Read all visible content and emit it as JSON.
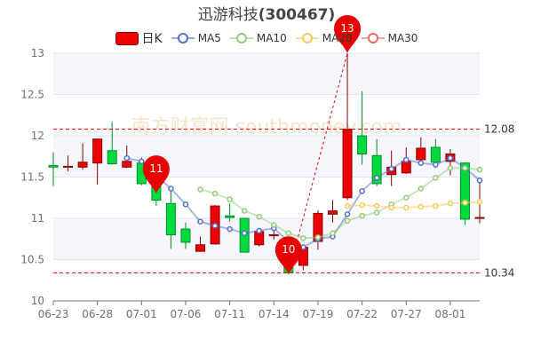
{
  "title": {
    "name": "迅游科技",
    "code": "(300467)"
  },
  "legend": [
    {
      "label": "日K",
      "color": "#ee0000"
    },
    {
      "label": "MA5",
      "color": "#5470c6"
    },
    {
      "label": "MA10",
      "color": "#91cc75"
    },
    {
      "label": "MA20",
      "color": "#fac858"
    },
    {
      "label": "MA30",
      "color": "#ee6666"
    }
  ],
  "chart_data": {
    "type": "candlestick",
    "ylim": [
      10,
      13
    ],
    "yticks": [
      10,
      10.5,
      11,
      11.5,
      12,
      12.5,
      13
    ],
    "xtick_labels": [
      "06-23",
      "06-28",
      "07-01",
      "07-06",
      "07-11",
      "07-14",
      "07-19",
      "07-22",
      "07-27",
      "08-01"
    ],
    "up_color": "#ee0000",
    "down_color": "#00da3c",
    "dates": [
      "06-23",
      "06-24",
      "06-27",
      "06-28",
      "06-29",
      "06-30",
      "07-01",
      "07-04",
      "07-05",
      "07-06",
      "07-07",
      "07-08",
      "07-11",
      "07-12",
      "07-13",
      "07-14",
      "07-15",
      "07-18",
      "07-19",
      "07-20",
      "07-21",
      "07-22",
      "07-25",
      "07-26",
      "07-27",
      "07-28",
      "07-29",
      "08-01",
      "08-02",
      "08-03"
    ],
    "ohlc": [
      [
        11.64,
        11.62,
        11.8,
        11.39
      ],
      [
        11.62,
        11.63,
        11.76,
        11.57
      ],
      [
        11.62,
        11.68,
        11.91,
        11.59
      ],
      [
        11.67,
        11.96,
        11.96,
        11.41
      ],
      [
        11.82,
        11.66,
        12.17,
        11.65
      ],
      [
        11.62,
        11.69,
        11.88,
        11.61
      ],
      [
        11.67,
        11.42,
        11.74,
        11.4
      ],
      [
        11.44,
        11.22,
        11.5,
        11.15
      ],
      [
        11.18,
        10.8,
        11.33,
        10.63
      ],
      [
        10.87,
        10.71,
        10.95,
        10.63
      ],
      [
        10.6,
        10.68,
        10.78,
        10.6
      ],
      [
        10.69,
        11.15,
        11.16,
        10.68
      ],
      [
        11.03,
        11.01,
        11.18,
        10.96
      ],
      [
        11.0,
        10.59,
        11.0,
        10.59
      ],
      [
        10.68,
        10.84,
        10.88,
        10.66
      ],
      [
        10.79,
        10.8,
        10.87,
        10.74
      ],
      [
        10.55,
        10.34,
        10.6,
        10.32
      ],
      [
        10.43,
        10.65,
        10.67,
        10.37
      ],
      [
        10.72,
        11.06,
        11.1,
        10.62
      ],
      [
        11.05,
        11.09,
        11.22,
        10.95
      ],
      [
        11.25,
        12.08,
        13.0,
        11.22
      ],
      [
        12.0,
        11.78,
        12.54,
        11.65
      ],
      [
        11.76,
        11.42,
        11.96,
        11.39
      ],
      [
        11.53,
        11.62,
        11.82,
        11.39
      ],
      [
        11.55,
        11.69,
        11.86,
        11.54
      ],
      [
        11.71,
        11.85,
        11.98,
        11.7
      ],
      [
        11.86,
        11.68,
        11.96,
        11.61
      ],
      [
        11.69,
        11.78,
        11.84,
        11.52
      ],
      [
        11.67,
        10.99,
        11.68,
        10.92
      ],
      [
        11.0,
        11.01,
        11.44,
        10.94
      ]
    ],
    "ma": {
      "MA5": [
        null,
        null,
        null,
        null,
        null,
        11.73,
        11.69,
        11.52,
        11.36,
        11.17,
        10.96,
        10.91,
        10.87,
        10.82,
        10.85,
        10.88,
        10.72,
        10.65,
        10.75,
        10.78,
        11.05,
        11.33,
        11.49,
        11.6,
        11.71,
        11.67,
        11.65,
        11.73,
        11.61,
        11.46
      ],
      "MA10": [
        null,
        null,
        null,
        null,
        null,
        null,
        null,
        null,
        null,
        null,
        11.35,
        11.3,
        11.23,
        11.09,
        11.02,
        10.92,
        10.82,
        10.76,
        10.77,
        10.82,
        10.97,
        11.03,
        11.07,
        11.17,
        11.25,
        11.36,
        11.49,
        11.61,
        11.61,
        11.59
      ],
      "MA20": [
        null,
        null,
        null,
        null,
        null,
        null,
        null,
        null,
        null,
        null,
        null,
        null,
        null,
        null,
        null,
        null,
        null,
        null,
        null,
        null,
        11.15,
        11.16,
        11.15,
        11.13,
        11.13,
        11.14,
        11.15,
        11.18,
        11.19,
        11.2
      ],
      "MA30": []
    },
    "mark_points": [
      {
        "date": "07-04",
        "value": 11.3,
        "label": "11"
      },
      {
        "date": "07-15",
        "value": 10.32,
        "label": "10"
      },
      {
        "date": "07-21",
        "value": 13.0,
        "label": "13"
      }
    ],
    "mark_lines": [
      {
        "value": 12.08,
        "label": "12.08"
      },
      {
        "value": 10.34,
        "label": "10.34"
      }
    ],
    "trend_line": {
      "from": [
        "07-15",
        10.34
      ],
      "to": [
        "07-21",
        13.0
      ]
    }
  },
  "watermark": "南方财富网 southmoney.com"
}
